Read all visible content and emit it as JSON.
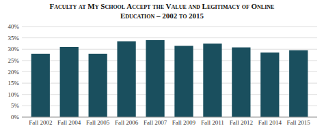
{
  "chart_data": {
    "type": "bar",
    "title": "Faculty at My School Accept the Value and Legitimacy of Online\nEducation – 2002 to 2015",
    "categories": [
      "Fall 2002",
      "Fall 2004",
      "Fall 2005",
      "Fall 2006",
      "Fall 2007",
      "Fall 2009",
      "Fall 2011",
      "Fall 2012",
      "Fall 2014",
      "Fall 2015"
    ],
    "values": [
      0.28,
      0.31,
      0.28,
      0.335,
      0.34,
      0.315,
      0.325,
      0.308,
      0.285,
      0.295
    ],
    "color": "#1a4f5e",
    "ylim": [
      0,
      0.4
    ],
    "yticks": [
      {
        "value": 0,
        "label": "0%"
      },
      {
        "value": 0.05,
        "label": "5%"
      },
      {
        "value": 0.1,
        "label": "10%"
      },
      {
        "value": 0.15,
        "label": "15%"
      },
      {
        "value": 0.2,
        "label": "20%"
      },
      {
        "value": 0.25,
        "label": "25%"
      },
      {
        "value": 0.3,
        "label": "30%"
      },
      {
        "value": 0.35,
        "label": "35%"
      },
      {
        "value": 0.4,
        "label": "40%"
      }
    ],
    "grid": true
  }
}
